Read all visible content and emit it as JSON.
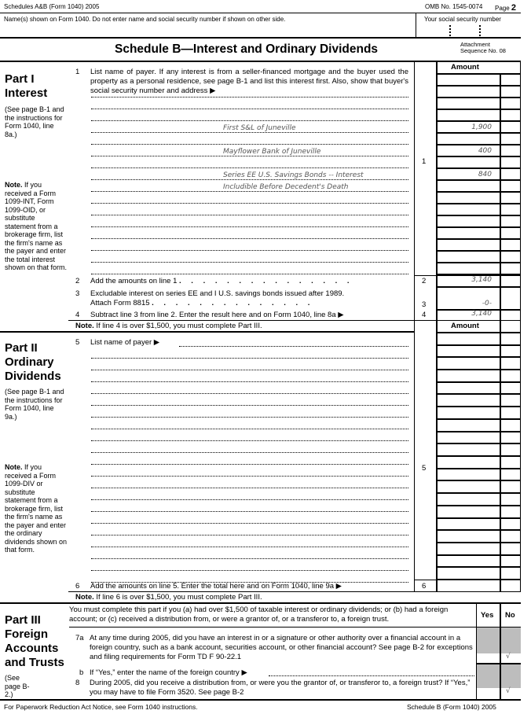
{
  "header": {
    "left": "Schedules A&B (Form 1040) 2005",
    "omb": "OMB No. 1545-0074",
    "page_label": "Page",
    "page_num": "2"
  },
  "name_row": {
    "label": "Name(s) shown on Form 1040. Do not enter name and social security number if shown on other side.",
    "ssn_label": "Your social security number"
  },
  "title": {
    "text": "Schedule B—Interest and Ordinary Dividends",
    "attachment": "Attachment",
    "sequence": "Sequence No. 08"
  },
  "part1": {
    "title": "Part I",
    "subtitle": "Interest",
    "see": "(See page B-1 and the instructions for Form 1040, line 8a.)",
    "note_bold": "Note.",
    "note": " If you received a Form 1099-INT, Form 1099-OID, or substitute statement from a brokerage firm, list the firm's name as the payer and enter the total interest shown on that form.",
    "amount_header": "Amount",
    "line1_num": "1",
    "line1_text": "List name of payer. If any interest is from a seller-financed mortgage and the buyer used the property as a personal residence, see page B-1 and list this interest first. Also, show that buyer's social security number and address ▶",
    "entries": [
      {
        "payer": "First S&L of Juneville",
        "amount": "1,900"
      },
      {
        "payer": "Mayflower Bank of Juneville",
        "amount": "400"
      },
      {
        "payer": "Series EE U.S. Savings Bonds -- Interest",
        "amount": "840"
      },
      {
        "payer": "Includible Before Decedent's Death",
        "amount": ""
      }
    ],
    "line2_num": "2",
    "line2_text": "Add the amounts on line 1",
    "line2_amount": "3,140",
    "line3_num": "3",
    "line3_text": "Excludable interest on series EE and I U.S. savings bonds issued after 1989.",
    "line3_text2": "Attach Form 8815",
    "line3_amount": "-0-",
    "line4_num": "4",
    "line4_text": "Subtract line 3 from line 2. Enter the result here and on Form 1040, line 8a ▶",
    "line4_amount": "3,140",
    "note_line": " If line 4 is over $1,500, you must complete Part III."
  },
  "part2": {
    "title": "Part II",
    "subtitle1": "Ordinary",
    "subtitle2": "Dividends",
    "see": "(See page B-1 and the instructions for Form 1040, line 9a.)",
    "note_bold": "Note.",
    "note": " If you received a Form 1099-DIV or substitute statement from a brokerage firm, list the firm's name as the payer and enter the ordinary dividends shown on that form.",
    "amount_header": "Amount",
    "line5_num": "5",
    "line5_text": "List name of payer ▶",
    "line6_num": "6",
    "line6_text": "Add the amounts on line 5. Enter the total here and on Form 1040, line 9a ▶",
    "note_line": " If line 6 is over $1,500, you must complete Part III."
  },
  "part3": {
    "title": "Part III",
    "subtitle1": "Foreign",
    "subtitle2": "Accounts",
    "subtitle3": "and Trusts",
    "see": "(See page B-2.)",
    "intro": "You must complete this part if you (a) had over $1,500 of taxable interest or ordinary dividends; or (b) had a foreign account; or (c) received a distribution from, or were a grantor of, or a transferor to, a foreign trust.",
    "yes": "Yes",
    "no": "No",
    "q7a_num": "7a",
    "q7a": "At any time during 2005, did you have an interest in or a signature or other authority over a financial account in a foreign country, such as a bank account, securities account, or other financial account? See page B-2 for exceptions and filing requirements for Form TD F 90-22.1",
    "q7b_num": "b",
    "q7b": "If “Yes,” enter the name of the foreign country ▶",
    "q8_num": "8",
    "q8": "During 2005, did you receive a distribution from, or were you the grantor of, or transferor to, a foreign trust? If “Yes,” you may have to file Form 3520. See page B-2",
    "q7a_answer": "√",
    "q8_answer": "√"
  },
  "footer": {
    "left": "For Paperwork Reduction Act Notice, see Form 1040 instructions.",
    "right": "Schedule B (Form 1040) 2005"
  }
}
